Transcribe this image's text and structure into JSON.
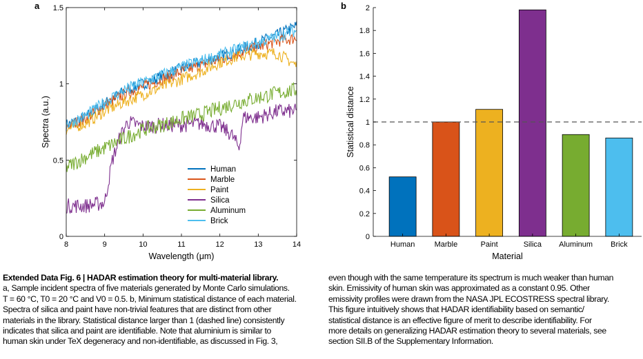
{
  "panels": {
    "a": "a",
    "b": "b"
  },
  "chart_data": [
    {
      "type": "line",
      "panel": "a",
      "xlabel": "Wavelength (μm)",
      "ylabel": "Spectra (a.u.)",
      "xlim": [
        8,
        14
      ],
      "ylim": [
        0,
        1.5
      ],
      "xticks": [
        "8",
        "9",
        "10",
        "11",
        "12",
        "13",
        "14"
      ],
      "yticks": [
        "0",
        "0.5",
        "1",
        "1.5"
      ],
      "legend_position": "lower-right",
      "noise": "high-frequency noise in all series",
      "series": [
        {
          "name": "Human",
          "color": "#0072BD",
          "x": [
            8,
            8.5,
            9,
            9.5,
            10,
            10.5,
            11,
            11.5,
            12,
            12.5,
            13,
            13.5,
            14
          ],
          "y": [
            0.73,
            0.78,
            0.87,
            0.95,
            1.0,
            1.05,
            1.1,
            1.14,
            1.18,
            1.22,
            1.27,
            1.32,
            1.38
          ]
        },
        {
          "name": "Marble",
          "color": "#D95319",
          "x": [
            8,
            8.5,
            9,
            9.5,
            10,
            10.5,
            11,
            11.5,
            12,
            12.5,
            13,
            13.5,
            14
          ],
          "y": [
            0.72,
            0.77,
            0.86,
            0.93,
            0.98,
            1.03,
            1.08,
            1.12,
            1.16,
            1.2,
            1.24,
            1.28,
            1.3
          ]
        },
        {
          "name": "Paint",
          "color": "#EDB120",
          "x": [
            8,
            8.5,
            9,
            9.5,
            10,
            10.5,
            11,
            11.5,
            12,
            12.5,
            13,
            13.5,
            14
          ],
          "y": [
            0.7,
            0.74,
            0.82,
            0.88,
            0.93,
            0.98,
            1.03,
            1.08,
            1.14,
            1.18,
            1.2,
            1.2,
            1.12
          ]
        },
        {
          "name": "Silica",
          "color": "#7E2F8E",
          "x": [
            8,
            8.5,
            9,
            9.2,
            9.4,
            9.6,
            10,
            10.5,
            11,
            11.5,
            12,
            12.3,
            12.5,
            12.6,
            13,
            13.5,
            14
          ],
          "y": [
            0.2,
            0.2,
            0.22,
            0.5,
            0.65,
            0.75,
            0.72,
            0.73,
            0.73,
            0.74,
            0.72,
            0.67,
            0.58,
            0.78,
            0.78,
            0.82,
            0.82
          ]
        },
        {
          "name": "Aluminum",
          "color": "#77AC30",
          "x": [
            8,
            8.5,
            9,
            9.5,
            10,
            10.5,
            11,
            11.5,
            12,
            12.5,
            13,
            13.5,
            14
          ],
          "y": [
            0.45,
            0.52,
            0.58,
            0.64,
            0.7,
            0.73,
            0.77,
            0.8,
            0.84,
            0.88,
            0.91,
            0.94,
            0.96
          ]
        },
        {
          "name": "Brick",
          "color": "#4DBEEE",
          "x": [
            8,
            8.5,
            9,
            9.5,
            10,
            10.5,
            11,
            11.5,
            12,
            12.5,
            13,
            13.5,
            14
          ],
          "y": [
            0.73,
            0.79,
            0.88,
            0.96,
            1.01,
            1.06,
            1.11,
            1.15,
            1.19,
            1.23,
            1.27,
            1.31,
            1.35
          ]
        }
      ]
    },
    {
      "type": "bar",
      "panel": "b",
      "xlabel": "Material",
      "ylabel": "Statistical distance",
      "ylim": [
        0,
        2
      ],
      "yticks": [
        "0",
        "0.2",
        "0.4",
        "0.6",
        "0.8",
        "1",
        "1.2",
        "1.4",
        "1.6",
        "1.8",
        "2"
      ],
      "reference_line": {
        "y": 1,
        "style": "dashed"
      },
      "categories": [
        "Human",
        "Marble",
        "Paint",
        "Silica",
        "Aluminum",
        "Brick"
      ],
      "values": [
        0.52,
        1.0,
        1.11,
        1.98,
        0.89,
        0.86
      ],
      "colors": [
        "#0072BD",
        "#D95319",
        "#EDB120",
        "#7E2F8E",
        "#77AC30",
        "#4DBEEE"
      ]
    }
  ],
  "caption": {
    "title": "Extended Data Fig. 6 | HADAR estimation theory for multi-material library.",
    "left_lines": [
      "a, Sample incident spectra of five materials generated by Monte Carlo simulations.",
      "T = 60 °C, T0 = 20 °C and V0 = 0.5. b, Minimum statistical distance of each material.",
      "Spectra of silica and paint have non-trivial features that are distinct from other",
      "materials in the library. Statistical distance larger than 1 (dashed line) consistently",
      "indicates that silica and paint are identifiable. Note that aluminium is similar to",
      "human skin under TeX degeneracy and non-identifiable, as discussed in Fig. 3,"
    ],
    "right_lines": [
      "even though with the same temperature its spectrum is much weaker than human",
      "skin. Emissivity of human skin was approximated as a constant 0.95. Other",
      "emissivity profiles were drawn from the NASA JPL ECOSTRESS spectral library.",
      "This figure intuitively shows that HADAR identifiability based on semantic/",
      "statistical distance is an effective figure of merit to describe identifiability. For",
      "more details on generalizing HADAR estimation theory to several materials, see",
      "section SII.B of the Supplementary Information."
    ]
  }
}
